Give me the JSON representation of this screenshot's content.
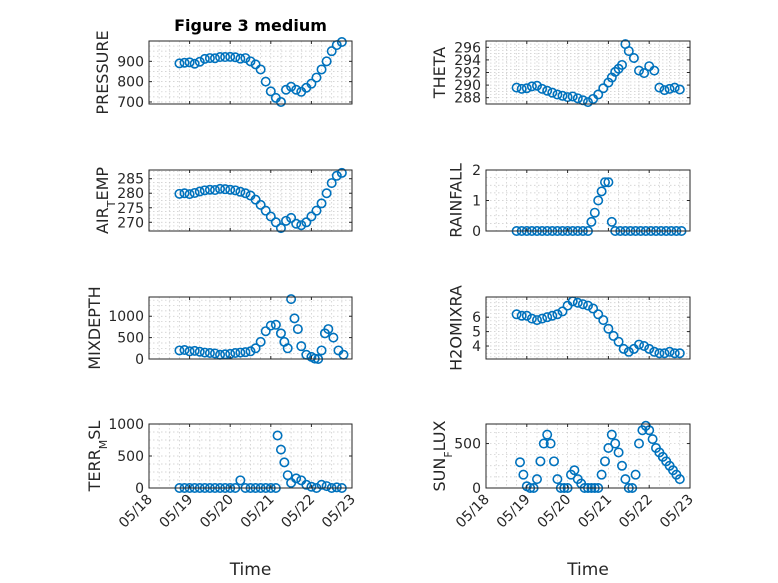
{
  "chart_data": [
    {
      "type": "scatter",
      "title": "Figure 3 medium",
      "ylabel": "PRESSURE",
      "xlim": [
        "05/18",
        "05/23"
      ],
      "ylim": [
        690,
        1000
      ],
      "yticks": [
        700,
        800,
        900
      ],
      "grid": true,
      "series": [
        {
          "x": [
            "05/18 18:00",
            "05/18 21:00",
            "05/19 00:00",
            "05/19 03:00",
            "05/19 06:00",
            "05/19 09:00",
            "05/19 12:00",
            "05/19 15:00",
            "05/19 18:00",
            "05/19 21:00",
            "05/20 00:00",
            "05/20 03:00",
            "05/20 06:00",
            "05/20 09:00",
            "05/20 12:00",
            "05/20 15:00",
            "05/20 18:00",
            "05/20 21:00",
            "05/21 00:00",
            "05/21 03:00",
            "05/21 06:00",
            "05/21 09:00",
            "05/21 12:00",
            "05/21 15:00",
            "05/21 18:00",
            "05/21 21:00",
            "05/22 00:00",
            "05/22 03:00",
            "05/22 06:00",
            "05/22 09:00",
            "05/22 12:00",
            "05/22 15:00",
            "05/22 18:00"
          ],
          "values": [
            890,
            893,
            895,
            888,
            898,
            912,
            916,
            915,
            921,
            921,
            922,
            920,
            913,
            916,
            900,
            885,
            860,
            800,
            752,
            720,
            700,
            760,
            775,
            760,
            750,
            770,
            790,
            820,
            860,
            900,
            950,
            980,
            995
          ]
        }
      ]
    },
    {
      "type": "scatter",
      "ylabel": "THETA",
      "xlim": [
        "05/18",
        "05/23"
      ],
      "ylim": [
        287,
        297
      ],
      "yticks": [
        288,
        290,
        292,
        294,
        296
      ],
      "grid": true,
      "series": [
        {
          "x": [
            "05/18 18:00",
            "05/18 21:00",
            "05/19 00:00",
            "05/19 03:00",
            "05/19 06:00",
            "05/19 09:00",
            "05/19 12:00",
            "05/19 15:00",
            "05/19 18:00",
            "05/19 21:00",
            "05/20 00:00",
            "05/20 03:00",
            "05/20 06:00",
            "05/20 09:00",
            "05/20 12:00",
            "05/20 15:00",
            "05/20 18:00",
            "05/20 21:00",
            "05/21 00:00",
            "05/21 02:00",
            "05/21 04:00",
            "05/21 06:00",
            "05/21 08:00",
            "05/21 10:00",
            "05/21 12:00",
            "05/21 15:00",
            "05/21 18:00",
            "05/21 21:00",
            "05/22 00:00",
            "05/22 03:00",
            "05/22 06:00",
            "05/22 09:00",
            "05/22 12:00",
            "05/22 15:00",
            "05/22 18:00"
          ],
          "values": [
            289.6,
            289.4,
            289.5,
            289.8,
            289.9,
            289.4,
            289.1,
            288.8,
            288.5,
            288.3,
            288.1,
            288.2,
            287.9,
            287.6,
            287.3,
            287.8,
            288.5,
            289.5,
            290.4,
            291.2,
            292.1,
            292.6,
            293.2,
            296.5,
            295.4,
            294.3,
            292.3,
            291.9,
            293.0,
            292.3,
            289.6,
            289.2,
            289.4,
            289.6,
            289.3
          ]
        }
      ]
    },
    {
      "type": "scatter",
      "ylabel": "AIR_TEMP",
      "xlim": [
        "05/18",
        "05/23"
      ],
      "ylim": [
        267,
        288
      ],
      "yticks": [
        270,
        275,
        280,
        285
      ],
      "grid": true,
      "series": [
        {
          "x": [
            "05/18 18:00",
            "05/18 21:00",
            "05/19 00:00",
            "05/19 03:00",
            "05/19 06:00",
            "05/19 09:00",
            "05/19 12:00",
            "05/19 15:00",
            "05/19 18:00",
            "05/19 21:00",
            "05/20 00:00",
            "05/20 03:00",
            "05/20 06:00",
            "05/20 09:00",
            "05/20 12:00",
            "05/20 15:00",
            "05/20 18:00",
            "05/20 21:00",
            "05/21 00:00",
            "05/21 03:00",
            "05/21 06:00",
            "05/21 09:00",
            "05/21 12:00",
            "05/21 15:00",
            "05/21 18:00",
            "05/21 21:00",
            "05/22 00:00",
            "05/22 03:00",
            "05/22 06:00",
            "05/22 09:00",
            "05/22 12:00",
            "05/22 15:00",
            "05/22 18:00"
          ],
          "values": [
            279.8,
            280.0,
            279.7,
            280.1,
            280.6,
            281.0,
            281.2,
            281.1,
            281.5,
            281.4,
            281.2,
            281.0,
            280.5,
            280.0,
            279.2,
            277.8,
            276.0,
            274.0,
            272.0,
            270.0,
            268.0,
            270.5,
            271.5,
            269.5,
            269.0,
            270.0,
            272.0,
            274.0,
            276.5,
            280.0,
            283.5,
            286.0,
            287.0
          ]
        }
      ]
    },
    {
      "type": "scatter",
      "ylabel": "RAINFALL",
      "xlim": [
        "05/18",
        "05/23"
      ],
      "ylim": [
        0,
        2
      ],
      "yticks": [
        0,
        1,
        2
      ],
      "grid": true,
      "series": [
        {
          "x": [
            "05/18 18:00",
            "05/18 21:00",
            "05/19 00:00",
            "05/19 03:00",
            "05/19 06:00",
            "05/19 09:00",
            "05/19 12:00",
            "05/19 15:00",
            "05/19 18:00",
            "05/19 21:00",
            "05/20 00:00",
            "05/20 03:00",
            "05/20 06:00",
            "05/20 09:00",
            "05/20 12:00",
            "05/20 14:00",
            "05/20 16:00",
            "05/20 18:00",
            "05/20 20:00",
            "05/20 22:00",
            "05/21 00:00",
            "05/21 02:00",
            "05/21 04:00",
            "05/21 07:00",
            "05/21 10:00",
            "05/21 13:00",
            "05/21 16:00",
            "05/21 19:00",
            "05/21 22:00",
            "05/22 01:00",
            "05/22 04:00",
            "05/22 07:00",
            "05/22 10:00",
            "05/22 13:00",
            "05/22 16:00",
            "05/22 19:00"
          ],
          "values": [
            0,
            0,
            0,
            0,
            0,
            0,
            0,
            0,
            0,
            0,
            0,
            0,
            0,
            0,
            0,
            0.3,
            0.6,
            1.0,
            1.3,
            1.6,
            1.6,
            0.3,
            0,
            0,
            0,
            0,
            0,
            0,
            0,
            0,
            0,
            0,
            0,
            0,
            0,
            0
          ]
        }
      ]
    },
    {
      "type": "scatter",
      "ylabel": "MIXDEPTH",
      "xlim": [
        "05/18",
        "05/23"
      ],
      "ylim": [
        0,
        1450
      ],
      "yticks": [
        0,
        500,
        1000
      ],
      "grid": true,
      "series": [
        {
          "x": [
            "05/18 18:00",
            "05/18 21:00",
            "05/19 00:00",
            "05/19 03:00",
            "05/19 06:00",
            "05/19 09:00",
            "05/19 12:00",
            "05/19 15:00",
            "05/19 18:00",
            "05/19 21:00",
            "05/20 00:00",
            "05/20 03:00",
            "05/20 06:00",
            "05/20 09:00",
            "05/20 12:00",
            "05/20 15:00",
            "05/20 18:00",
            "05/20 21:00",
            "05/21 00:00",
            "05/21 03:00",
            "05/21 06:00",
            "05/21 08:00",
            "05/21 10:00",
            "05/21 12:00",
            "05/21 14:00",
            "05/21 16:00",
            "05/21 18:00",
            "05/21 21:00",
            "05/22 00:00",
            "05/22 02:00",
            "05/22 04:00",
            "05/22 06:00",
            "05/22 08:00",
            "05/22 10:00",
            "05/22 13:00",
            "05/22 16:00",
            "05/22 19:00"
          ],
          "values": [
            200,
            210,
            180,
            190,
            170,
            150,
            140,
            130,
            100,
            110,
            120,
            140,
            150,
            160,
            180,
            250,
            400,
            650,
            780,
            800,
            600,
            400,
            250,
            1400,
            950,
            700,
            300,
            100,
            50,
            10,
            0,
            200,
            600,
            700,
            500,
            200,
            100
          ]
        }
      ]
    },
    {
      "type": "scatter",
      "ylabel": "H2OMIXRA",
      "xlim": [
        "05/18",
        "05/23"
      ],
      "ylim": [
        3.1,
        7.4
      ],
      "yticks": [
        4,
        5,
        6
      ],
      "grid": true,
      "series": [
        {
          "x": [
            "05/18 18:00",
            "05/18 21:00",
            "05/19 00:00",
            "05/19 03:00",
            "05/19 06:00",
            "05/19 09:00",
            "05/19 12:00",
            "05/19 15:00",
            "05/19 18:00",
            "05/19 21:00",
            "05/20 00:00",
            "05/20 03:00",
            "05/20 06:00",
            "05/20 09:00",
            "05/20 12:00",
            "05/20 15:00",
            "05/20 18:00",
            "05/20 21:00",
            "05/21 00:00",
            "05/21 03:00",
            "05/21 06:00",
            "05/21 09:00",
            "05/21 12:00",
            "05/21 15:00",
            "05/21 18:00",
            "05/21 21:00",
            "05/22 00:00",
            "05/22 03:00",
            "05/22 06:00",
            "05/22 09:00",
            "05/22 12:00",
            "05/22 15:00",
            "05/22 18:00"
          ],
          "values": [
            6.2,
            6.1,
            6.1,
            5.9,
            5.8,
            5.9,
            6.0,
            6.1,
            6.2,
            6.4,
            6.8,
            7.1,
            7.0,
            6.9,
            6.8,
            6.6,
            6.2,
            5.8,
            5.2,
            4.7,
            4.3,
            3.8,
            3.6,
            3.8,
            4.1,
            4.0,
            3.8,
            3.6,
            3.5,
            3.5,
            3.6,
            3.5,
            3.5
          ]
        }
      ]
    },
    {
      "type": "scatter",
      "ylabel": "TERR_MSL",
      "xlim": [
        "05/18",
        "05/23"
      ],
      "ylim": [
        0,
        1000
      ],
      "yticks": [
        0,
        500,
        1000
      ],
      "grid": true,
      "series": [
        {
          "x": [
            "05/18 18:00",
            "05/18 21:00",
            "05/19 00:00",
            "05/19 03:00",
            "05/19 06:00",
            "05/19 09:00",
            "05/19 12:00",
            "05/19 15:00",
            "05/19 18:00",
            "05/19 21:00",
            "05/20 00:00",
            "05/20 03:00",
            "05/20 06:00",
            "05/20 09:00",
            "05/20 12:00",
            "05/20 15:00",
            "05/20 18:00",
            "05/20 21:00",
            "05/21 00:00",
            "05/21 03:00",
            "05/21 04:00",
            "05/21 06:00",
            "05/21 08:00",
            "05/21 10:00",
            "05/21 12:00",
            "05/21 15:00",
            "05/21 18:00",
            "05/21 21:00",
            "05/22 00:00",
            "05/22 03:00",
            "05/22 06:00",
            "05/22 09:00",
            "05/22 12:00",
            "05/22 15:00",
            "05/22 18:00"
          ],
          "values": [
            0,
            0,
            0,
            0,
            0,
            0,
            0,
            0,
            0,
            0,
            0,
            0,
            120,
            0,
            0,
            0,
            0,
            0,
            0,
            0,
            820,
            600,
            400,
            200,
            80,
            150,
            120,
            50,
            20,
            0,
            50,
            30,
            0,
            10,
            0
          ]
        }
      ]
    },
    {
      "type": "scatter",
      "ylabel": "SUN_FLUX",
      "xlim": [
        "05/18",
        "05/23"
      ],
      "ylim": [
        0,
        720
      ],
      "yticks": [
        0,
        500
      ],
      "grid": true,
      "series": [
        {
          "x": [
            "05/18 20:00",
            "05/18 22:00",
            "05/19 00:00",
            "05/19 02:00",
            "05/19 04:00",
            "05/19 06:00",
            "05/19 08:00",
            "05/19 10:00",
            "05/19 12:00",
            "05/19 14:00",
            "05/19 16:00",
            "05/19 18:00",
            "05/19 20:00",
            "05/19 22:00",
            "05/20 00:00",
            "05/20 02:00",
            "05/20 04:00",
            "05/20 06:00",
            "05/20 08:00",
            "05/20 10:00",
            "05/20 12:00",
            "05/20 14:00",
            "05/20 16:00",
            "05/20 18:00",
            "05/20 20:00",
            "05/20 22:00",
            "05/21 00:00",
            "05/21 02:00",
            "05/21 04:00",
            "05/21 06:00",
            "05/21 08:00",
            "05/21 10:00",
            "05/21 12:00",
            "05/21 14:00",
            "05/21 16:00",
            "05/21 18:00",
            "05/21 20:00",
            "05/21 22:00",
            "05/22 00:00",
            "05/22 02:00",
            "05/22 04:00",
            "05/22 06:00",
            "05/22 08:00",
            "05/22 10:00",
            "05/22 12:00",
            "05/22 14:00",
            "05/22 16:00",
            "05/22 18:00"
          ],
          "values": [
            290,
            150,
            20,
            0,
            0,
            100,
            300,
            500,
            600,
            500,
            300,
            100,
            0,
            0,
            0,
            150,
            200,
            100,
            50,
            0,
            0,
            0,
            0,
            0,
            150,
            300,
            450,
            600,
            500,
            400,
            250,
            100,
            0,
            0,
            150,
            500,
            650,
            700,
            650,
            550,
            450,
            400,
            350,
            300,
            250,
            200,
            150,
            100
          ]
        }
      ]
    }
  ],
  "xticks": [
    "05/18",
    "05/19",
    "05/20",
    "05/21",
    "05/22",
    "05/23"
  ],
  "xlabel": "Time"
}
